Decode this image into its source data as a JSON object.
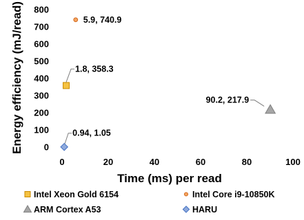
{
  "chart_data": {
    "type": "scatter",
    "xlabel": "Time (ms) per read",
    "ylabel": "Energy efficiency (mJ/read)",
    "xlim": [
      0,
      100
    ],
    "ylim": [
      0,
      800
    ],
    "x_ticks": [
      "0",
      "20",
      "40",
      "60",
      "80",
      "100"
    ],
    "y_ticks": [
      "0",
      "100",
      "200",
      "300",
      "400",
      "500",
      "600",
      "700",
      "800"
    ],
    "grid": false,
    "legend_position": "bottom",
    "series": [
      {
        "name": "Intel Xeon Gold 6154",
        "marker": "square",
        "color": "#F5C242",
        "edge": "#C98A00",
        "x": 1.8,
        "y": 358.3,
        "label": "1.8, 358.3"
      },
      {
        "name": "Intel Core i9-10850K",
        "marker": "circle",
        "color": "#F4A460",
        "edge": "#D2691E",
        "x": 5.9,
        "y": 740.9,
        "label": "5.9, 740.9"
      },
      {
        "name": "ARM Cortex A53",
        "marker": "triangle",
        "color": "#A6A6A6",
        "edge": "#7F7F7F",
        "x": 90.2,
        "y": 217.9,
        "label": "90.2, 217.9"
      },
      {
        "name": "HARU",
        "marker": "diamond",
        "color": "#8FAADC",
        "edge": "#4472C4",
        "x": 0.94,
        "y": 1.05,
        "label": "0.94, 1.05"
      }
    ]
  }
}
